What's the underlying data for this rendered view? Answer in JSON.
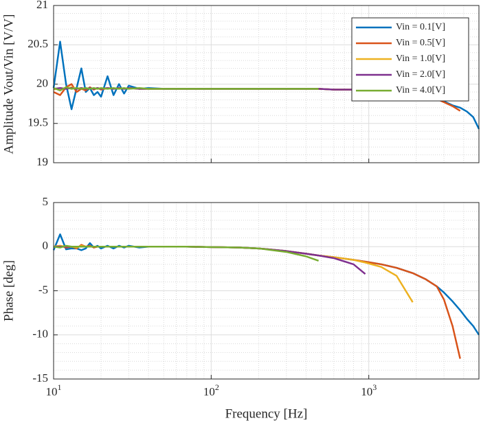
{
  "chart_data": [
    {
      "type": "line",
      "ylabel": "Amplitude Vout/Vin [V/V]",
      "log_x": true,
      "grid": true,
      "minor_grid": true,
      "legend": "northeast",
      "show_xtick_labels": false,
      "xlim": [
        10,
        5000
      ],
      "ylim": [
        19,
        21
      ],
      "xticks": [
        10,
        100,
        1000
      ],
      "yticks": [
        19,
        19.5,
        20,
        20.5,
        21
      ],
      "x": [
        10,
        11,
        12,
        13,
        14,
        15,
        16,
        17,
        18,
        19,
        20,
        22,
        24,
        26,
        28,
        30,
        35,
        40,
        50,
        70,
        100,
        150,
        200,
        300,
        400,
        480,
        600,
        800,
        950,
        1200,
        1500,
        1900,
        2300,
        2700,
        3000,
        3400,
        3800,
        4200,
        4600,
        5000
      ],
      "series": [
        {
          "name": "Vin = 0.1[V]",
          "color": "#0072BD",
          "values": [
            19.95,
            20.54,
            20.0,
            19.68,
            19.95,
            20.2,
            19.9,
            19.95,
            19.86,
            19.9,
            19.84,
            20.1,
            19.86,
            20.0,
            19.88,
            19.98,
            19.94,
            19.95,
            19.94,
            19.94,
            19.94,
            19.94,
            19.94,
            19.94,
            19.94,
            19.94,
            19.93,
            19.93,
            19.92,
            19.91,
            19.9,
            19.89,
            19.86,
            19.82,
            19.78,
            19.73,
            19.7,
            19.65,
            19.58,
            19.43
          ]
        },
        {
          "name": "Vin = 0.5[V]",
          "color": "#D95319",
          "values": [
            19.9,
            19.86,
            19.96,
            20.0,
            19.9,
            19.94,
            19.92,
            19.96,
            19.93,
            19.95,
            19.93,
            19.95,
            19.94,
            19.95,
            19.94,
            19.95,
            19.94,
            19.94,
            19.94,
            19.94,
            19.94,
            19.94,
            19.94,
            19.94,
            19.94,
            19.94,
            19.93,
            19.93,
            19.92,
            19.91,
            19.9,
            19.88,
            19.85,
            19.81,
            19.77,
            19.72,
            19.66,
            null,
            null,
            null
          ]
        },
        {
          "name": "Vin = 1.0[V]",
          "color": "#EDB120",
          "values": [
            19.93,
            19.95,
            19.94,
            19.96,
            19.94,
            19.95,
            19.94,
            19.95,
            19.94,
            19.95,
            19.94,
            19.95,
            19.94,
            19.95,
            19.94,
            19.95,
            19.94,
            19.94,
            19.94,
            19.94,
            19.94,
            19.94,
            19.94,
            19.94,
            19.94,
            19.94,
            19.93,
            19.93,
            19.92,
            19.91,
            19.9,
            19.89,
            null,
            null,
            null,
            null,
            null,
            null,
            null,
            null
          ]
        },
        {
          "name": "Vin = 2.0[V]",
          "color": "#7E2F8E",
          "values": [
            19.94,
            19.95,
            19.94,
            19.95,
            19.94,
            19.95,
            19.94,
            19.95,
            19.94,
            19.95,
            19.94,
            19.95,
            19.94,
            19.95,
            19.94,
            19.95,
            19.94,
            19.94,
            19.94,
            19.94,
            19.94,
            19.94,
            19.94,
            19.94,
            19.94,
            19.94,
            19.93,
            19.93,
            19.92,
            null,
            null,
            null,
            null,
            null,
            null,
            null,
            null,
            null,
            null,
            null
          ]
        },
        {
          "name": "Vin = 4.0[V]",
          "color": "#77AC30",
          "values": [
            19.95,
            19.92,
            19.96,
            19.94,
            19.95,
            19.94,
            19.95,
            19.94,
            19.95,
            19.94,
            19.95,
            19.94,
            19.95,
            19.94,
            19.95,
            19.94,
            19.95,
            19.94,
            19.94,
            19.94,
            19.94,
            19.94,
            19.94,
            19.94,
            19.94,
            19.94,
            null,
            null,
            null,
            null,
            null,
            null,
            null,
            null,
            null,
            null,
            null,
            null,
            null,
            null
          ]
        }
      ]
    },
    {
      "type": "line",
      "xlabel": "Frequency [Hz]",
      "ylabel": "Phase [deg]",
      "log_x": true,
      "grid": true,
      "minor_grid": true,
      "show_xtick_labels": true,
      "xlim": [
        10,
        5000
      ],
      "ylim": [
        -15,
        5
      ],
      "xticks": [
        {
          "value": 10,
          "label": "10^1"
        },
        {
          "value": 100,
          "label": "10^2"
        },
        {
          "value": 1000,
          "label": "10^3"
        }
      ],
      "yticks": [
        -15,
        -10,
        -5,
        0,
        5
      ],
      "x": [
        10,
        11,
        12,
        13,
        14,
        15,
        16,
        17,
        18,
        19,
        20,
        22,
        24,
        26,
        28,
        30,
        35,
        40,
        50,
        70,
        100,
        150,
        200,
        300,
        400,
        480,
        600,
        800,
        950,
        1200,
        1500,
        1900,
        2300,
        2700,
        3000,
        3400,
        3800,
        4200,
        4600,
        5000
      ],
      "series": [
        {
          "color": "#0072BD",
          "values": [
            -0.4,
            1.4,
            -0.3,
            -0.2,
            -0.2,
            -0.4,
            -0.2,
            0.4,
            -0.1,
            0.1,
            -0.2,
            0.1,
            -0.2,
            0.1,
            -0.1,
            0.1,
            -0.1,
            0,
            0,
            0,
            -0.05,
            -0.1,
            -0.2,
            -0.5,
            -0.8,
            -1.0,
            -1.2,
            -1.5,
            -1.7,
            -2.0,
            -2.4,
            -3.0,
            -3.7,
            -4.5,
            -5.2,
            -6.2,
            -7.2,
            -8.2,
            -9.0,
            -10.0
          ]
        },
        {
          "color": "#D95319",
          "values": [
            0,
            0.1,
            -0.1,
            0,
            -0.2,
            0.2,
            0,
            0.1,
            -0.1,
            0,
            0,
            0,
            0,
            0,
            0,
            0,
            0,
            0,
            0,
            0,
            -0.05,
            -0.1,
            -0.2,
            -0.5,
            -0.8,
            -1.0,
            -1.2,
            -1.5,
            -1.7,
            -2.0,
            -2.4,
            -3.0,
            -3.7,
            -4.5,
            -6.0,
            -9.0,
            -12.7,
            null,
            null,
            null
          ]
        },
        {
          "color": "#EDB120",
          "values": [
            0,
            0.1,
            0,
            0,
            -0.1,
            0.1,
            0,
            0,
            0,
            0,
            0,
            0,
            0,
            0,
            0,
            0,
            0,
            0,
            0,
            0,
            -0.05,
            -0.1,
            -0.2,
            -0.5,
            -0.8,
            -1.0,
            -1.2,
            -1.5,
            -1.8,
            -2.3,
            -3.3,
            -6.3,
            null,
            null,
            null,
            null,
            null,
            null,
            null,
            null
          ]
        },
        {
          "color": "#7E2F8E",
          "values": [
            0,
            0,
            0,
            0,
            0,
            0,
            0,
            0,
            0,
            0,
            0,
            0,
            0,
            0,
            0,
            0,
            0,
            0,
            0,
            0,
            -0.05,
            -0.1,
            -0.2,
            -0.5,
            -0.8,
            -1.0,
            -1.3,
            -2.0,
            -3.1,
            null,
            null,
            null,
            null,
            null,
            null,
            null,
            null,
            null,
            null,
            null
          ]
        },
        {
          "color": "#77AC30",
          "values": [
            0,
            -0.1,
            0.1,
            0,
            0,
            0,
            0,
            0,
            0,
            0,
            0,
            0,
            0,
            0,
            0,
            0,
            0,
            0,
            0,
            0,
            -0.05,
            -0.1,
            -0.2,
            -0.6,
            -1.1,
            -1.6,
            null,
            null,
            null,
            null,
            null,
            null,
            null,
            null,
            null,
            null,
            null,
            null,
            null,
            null
          ]
        }
      ]
    }
  ]
}
